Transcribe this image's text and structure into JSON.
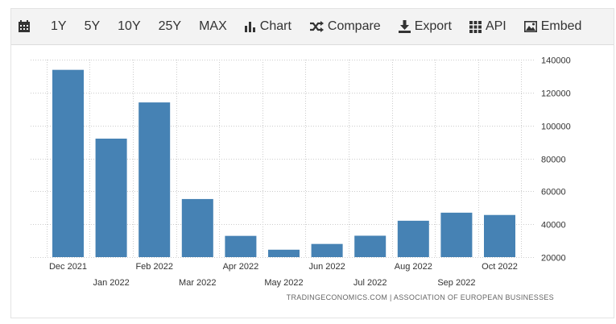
{
  "toolbar": {
    "range_1y": "1Y",
    "range_5y": "5Y",
    "range_10y": "10Y",
    "range_25y": "25Y",
    "range_max": "MAX",
    "chart": "Chart",
    "compare": "Compare",
    "export": "Export",
    "api": "API",
    "embed": "Embed"
  },
  "source": "TRADINGECONOMICS.COM  |  ASSOCIATION OF EUROPEAN BUSINESSES",
  "colors": {
    "bar": "#4682b4",
    "grid": "#cccccc"
  },
  "chart_data": {
    "type": "bar",
    "categories": [
      "Dec 2021",
      "Jan 2022",
      "Feb 2022",
      "Mar 2022",
      "Apr 2022",
      "May 2022",
      "Jun 2022",
      "Jul 2022",
      "Aug 2022",
      "Sep 2022",
      "Oct 2022"
    ],
    "values": [
      133800,
      92000,
      114000,
      55300,
      32900,
      24500,
      28000,
      33000,
      42100,
      47000,
      45600
    ],
    "ylim": [
      20000,
      140000
    ],
    "yticks": [
      20000,
      40000,
      60000,
      80000,
      100000,
      120000,
      140000
    ],
    "title": "",
    "xlabel": "",
    "ylabel": "",
    "grid": true
  }
}
